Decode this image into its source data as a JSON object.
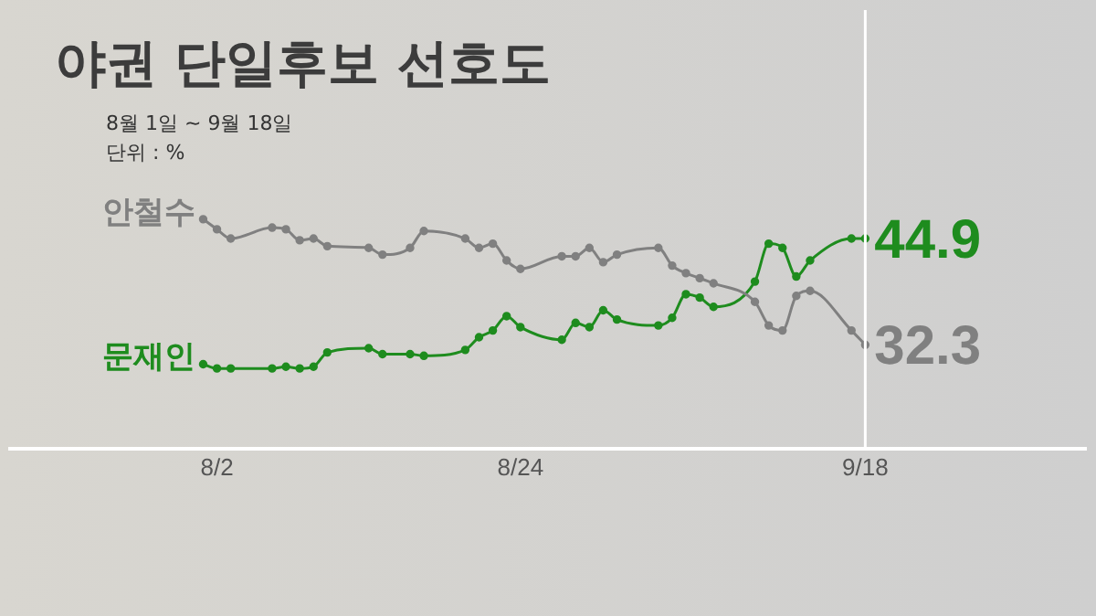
{
  "chart_data": {
    "type": "line",
    "title": "야권 단일후보 선호도",
    "subtitle": "8월 1일 ~ 9월 18일",
    "annotations": [
      "단위 : %"
    ],
    "x": [
      "--08-01",
      "--08-02",
      "--08-03",
      "--08-06",
      "--08-07",
      "--08-08",
      "--08-09",
      "--08-10",
      "--08-13",
      "--08-14",
      "--08-16",
      "--08-17",
      "--08-20",
      "--08-21",
      "--08-22",
      "--08-23",
      "--08-24",
      "--08-27",
      "--08-28",
      "--08-29",
      "--08-30",
      "--08-31",
      "--09-03",
      "--09-04",
      "--09-05",
      "--09-06",
      "--09-07",
      "--09-10",
      "--09-11",
      "--09-12",
      "--09-13",
      "--09-14",
      "--09-17",
      "--09-18"
    ],
    "series": [
      {
        "name": "안철수",
        "color": "#808080",
        "values": [
          47.2,
          46.0,
          44.9,
          46.2,
          46.0,
          44.7,
          44.9,
          44.0,
          43.8,
          43.0,
          43.8,
          45.8,
          44.9,
          43.8,
          44.3,
          42.3,
          41.3,
          42.8,
          42.8,
          43.8,
          42.1,
          43.0,
          43.8,
          41.7,
          40.8,
          40.2,
          39.6,
          37.4,
          34.6,
          34.0,
          38.1,
          38.7,
          34.0,
          32.3
        ],
        "value_labels": [
          null,
          null,
          null,
          null,
          null,
          null,
          null,
          null,
          null,
          null,
          null,
          null,
          null,
          null,
          null,
          null,
          null,
          null,
          null,
          null,
          null,
          null,
          null,
          null,
          null,
          null,
          null,
          null,
          null,
          null,
          null,
          null,
          null,
          "32.3"
        ]
      },
      {
        "name": "문재인",
        "color": "#1e8c1e",
        "values": [
          30.0,
          29.5,
          29.5,
          29.5,
          29.7,
          29.5,
          29.7,
          31.4,
          31.9,
          31.2,
          31.2,
          31.0,
          31.7,
          33.2,
          34.0,
          35.7,
          34.4,
          32.9,
          34.9,
          34.4,
          36.4,
          35.3,
          34.6,
          35.5,
          38.3,
          37.9,
          36.8,
          39.8,
          44.3,
          43.8,
          40.4,
          42.3,
          44.9,
          44.9
        ],
        "value_labels": [
          null,
          null,
          null,
          null,
          null,
          null,
          null,
          null,
          null,
          null,
          null,
          null,
          null,
          null,
          null,
          null,
          null,
          null,
          null,
          null,
          null,
          null,
          null,
          null,
          null,
          null,
          null,
          null,
          null,
          null,
          null,
          null,
          null,
          "44.9"
        ]
      }
    ],
    "xlim": [
      "--07-18",
      "--10-04"
    ],
    "xticks": [
      {
        "value": "--08-02",
        "label": "8/2"
      },
      {
        "value": "--08-24",
        "label": "8/24"
      },
      {
        "value": "--09-18",
        "label": "9/18"
      }
    ],
    "ylim": [
      20,
      72
    ],
    "tick_labels": "x",
    "grid": false,
    "legend": false,
    "marker": "circle",
    "line_style": "solid",
    "ref_lines": [
      {
        "axis": "x",
        "value": "--09-18",
        "color": "#ffffff"
      }
    ]
  }
}
